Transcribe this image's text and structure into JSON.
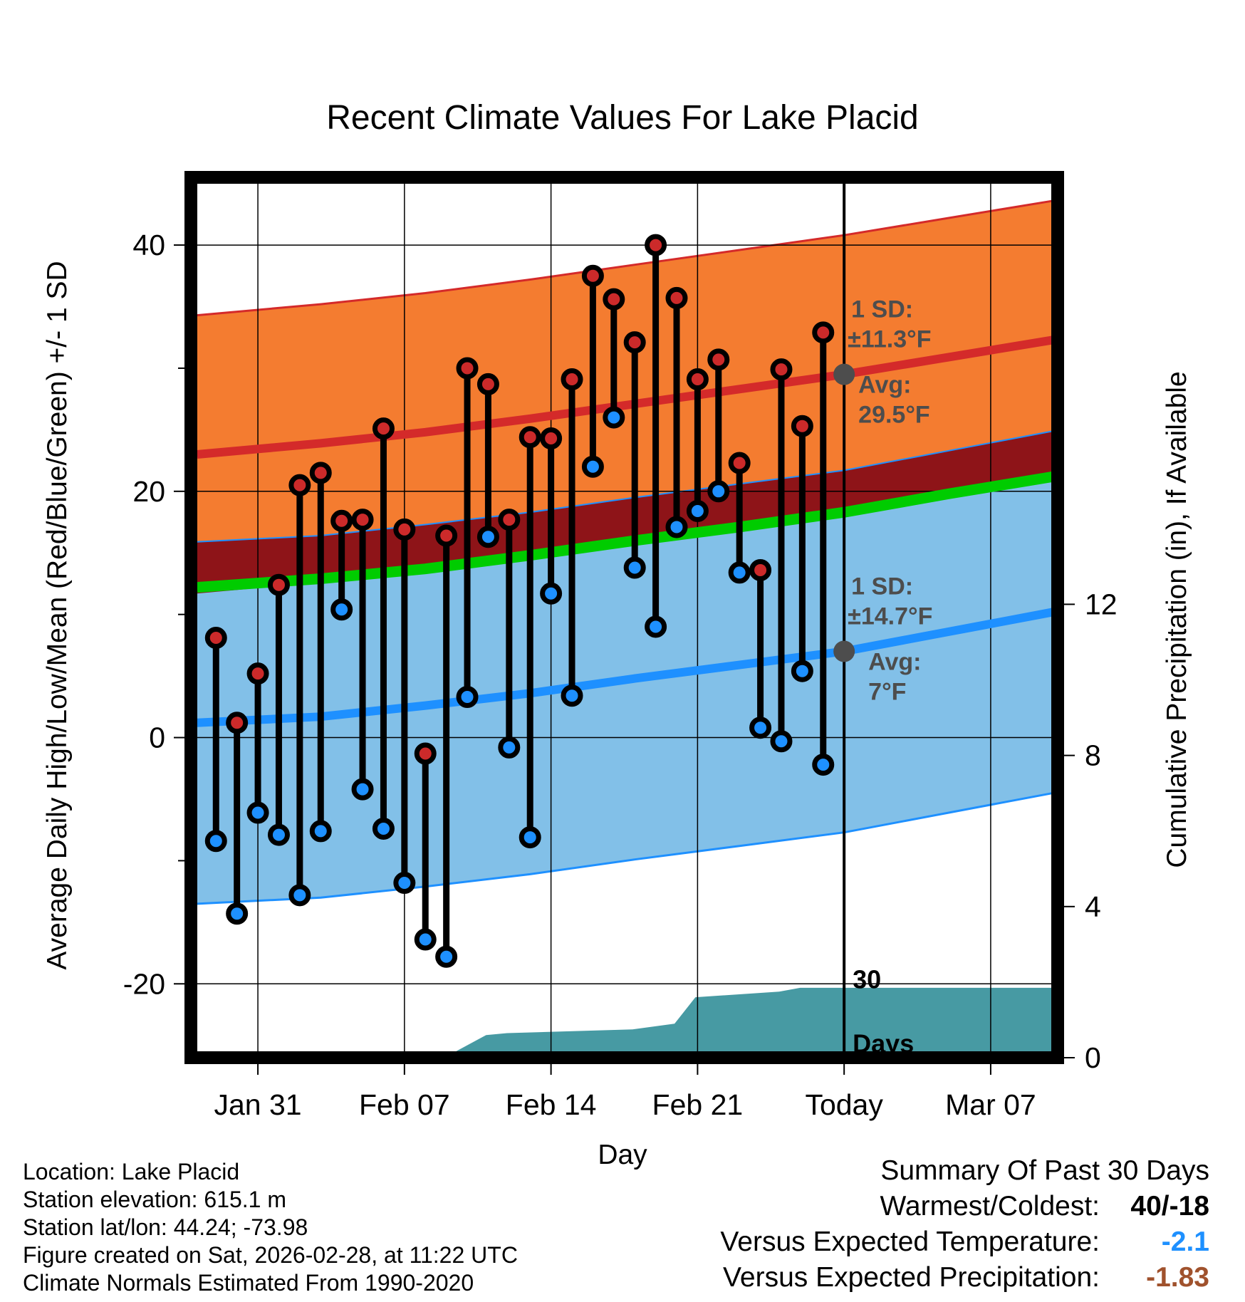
{
  "colors": {
    "normal_high_band": "#f47c30",
    "normal_high_line": "#d42a2a",
    "normal_low_band": "#82c0e8",
    "normal_low_line": "#1e90ff",
    "mean_line": "#00cc00",
    "overlap_band": "#8e1418",
    "precip_fill": "#479aa3",
    "high_dot": "#cc2a2a",
    "low_dot": "#1e90ff",
    "temp_anomaly": "#1e90ff",
    "precip_anomaly": "#a0522d",
    "annotation": "#4d4d4d"
  },
  "chart_data": {
    "type": "line",
    "title": "Recent Climate Values For Lake Placid",
    "xlabel": "Day",
    "ylabel": "Average Daily High/Low/Mean (Red/Blue/Green) +/- 1 SD",
    "y2label": "Cumulative Precipitation (in), If Available",
    "xlim": [
      -3.2,
      38.2
    ],
    "ylim": [
      -26,
      45.5
    ],
    "y2lim": [
      0,
      23.3
    ],
    "x_ticks": [
      {
        "x": 0,
        "label": "Jan 31"
      },
      {
        "x": 7,
        "label": "Feb 07"
      },
      {
        "x": 14,
        "label": "Feb 14"
      },
      {
        "x": 21,
        "label": "Feb 21"
      },
      {
        "x": 28,
        "label": "Today"
      },
      {
        "x": 35,
        "label": "Mar 07"
      }
    ],
    "y_ticks": [
      -20,
      0,
      20,
      40
    ],
    "y_ticks_labels": [
      "-20",
      "0",
      "20",
      "40"
    ],
    "y_minor_ticks": [
      -10,
      10,
      30
    ],
    "y2_ticks": [
      0,
      4,
      8,
      12
    ],
    "y2_ticks_labels": [
      "0",
      "4",
      "8",
      "12"
    ],
    "today_x": 28,
    "daily": [
      {
        "day": -2,
        "high": 8.1,
        "low": -8.4
      },
      {
        "day": -1,
        "high": 1.2,
        "low": -14.3
      },
      {
        "day": 0,
        "high": 5.2,
        "low": -6.1
      },
      {
        "day": 1,
        "high": 12.4,
        "low": -7.9
      },
      {
        "day": 2,
        "high": 20.5,
        "low": -12.8
      },
      {
        "day": 3,
        "high": 21.5,
        "low": -7.6
      },
      {
        "day": 4,
        "high": 17.6,
        "low": 10.4
      },
      {
        "day": 5,
        "high": 17.7,
        "low": -4.2
      },
      {
        "day": 6,
        "high": 25.1,
        "low": -7.4
      },
      {
        "day": 7,
        "high": 16.9,
        "low": -11.8
      },
      {
        "day": 8,
        "high": -1.3,
        "low": -16.4
      },
      {
        "day": 9,
        "high": 16.4,
        "low": -17.8
      },
      {
        "day": 10,
        "high": 30.0,
        "low": 3.3
      },
      {
        "day": 11,
        "high": 28.7,
        "low": 16.3
      },
      {
        "day": 12,
        "high": 17.7,
        "low": -0.8
      },
      {
        "day": 13,
        "high": 24.4,
        "low": -8.1
      },
      {
        "day": 14,
        "high": 24.3,
        "low": 11.7
      },
      {
        "day": 15,
        "high": 29.1,
        "low": 3.4
      },
      {
        "day": 16,
        "high": 37.5,
        "low": 22.0
      },
      {
        "day": 17,
        "high": 35.6,
        "low": 26.0
      },
      {
        "day": 18,
        "high": 32.1,
        "low": 13.8
      },
      {
        "day": 19,
        "high": 40.0,
        "low": 9.0
      },
      {
        "day": 20,
        "high": 35.7,
        "low": 17.1
      },
      {
        "day": 21,
        "high": 29.1,
        "low": 18.4
      },
      {
        "day": 22,
        "high": 30.7,
        "low": 20.0
      },
      {
        "day": 23,
        "high": 22.3,
        "low": 13.4
      },
      {
        "day": 24,
        "high": 13.6,
        "low": 0.8
      },
      {
        "day": 25,
        "high": 29.9,
        "low": -0.3
      },
      {
        "day": 26,
        "high": 25.3,
        "low": 5.4
      },
      {
        "day": 27,
        "high": 32.9,
        "low": -2.2
      }
    ],
    "normals": {
      "x": [
        -2.9,
        3,
        8,
        13,
        18,
        23,
        28,
        33,
        38
      ],
      "avg_high": [
        23.0,
        23.9,
        24.8,
        25.9,
        27.1,
        28.3,
        29.5,
        30.9,
        32.3
      ],
      "avg_low": [
        1.2,
        1.7,
        2.6,
        3.6,
        4.8,
        5.9,
        7.0,
        8.6,
        10.2
      ],
      "avg_mean": [
        12.2,
        12.9,
        13.7,
        14.8,
        16.0,
        17.1,
        18.3,
        19.8,
        21.2
      ],
      "high_sd": 11.3,
      "low_sd": 14.7
    },
    "precip_cumulative": {
      "x": [
        -2.9,
        8.9,
        10.9,
        11.9,
        17.9,
        19.9,
        20.9,
        24.9,
        25.9,
        38
      ],
      "y": [
        0,
        0,
        0.6,
        0.65,
        0.75,
        0.9,
        1.6,
        1.75,
        1.85,
        1.85
      ]
    },
    "annotations": {
      "high_sd_label": "1 SD:",
      "high_sd_value": "±11.3°F",
      "high_avg_label": "Avg:",
      "high_avg_value": "29.5°F",
      "low_sd_label": "1 SD:",
      "low_sd_value": "±14.7°F",
      "low_avg_label": "Avg:",
      "low_avg_value": "7°F",
      "days_count": "30",
      "days_label": "Days"
    }
  },
  "footer": {
    "location": "Location: Lake Placid",
    "elevation": "Station elevation: 615.1 m",
    "latlon": "Station lat/lon: 44.24; -73.98",
    "created": "Figure created on Sat, 2026-02-28, at 11:22 UTC",
    "normals": "Climate Normals Estimated From 1990-2020"
  },
  "summary": {
    "heading": "Summary Of Past 30 Days",
    "warmest_coldest_label": "Warmest/Coldest:",
    "warmest_coldest_value": "40/-18",
    "temp_label": "Versus Expected Temperature:",
    "temp_value": "-2.1",
    "precip_label": "Versus Expected Precipitation:",
    "precip_value": "-1.83"
  }
}
